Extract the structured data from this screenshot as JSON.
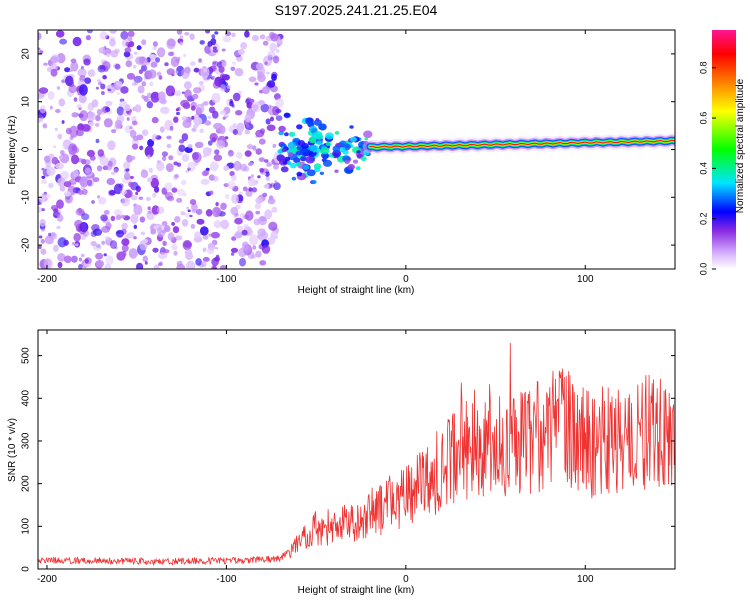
{
  "title": "S197.2025.241.21.25.E04",
  "chart_data": [
    {
      "type": "heatmap",
      "title": "S197.2025.241.21.25.E04",
      "xlabel": "Height of straight line (km)",
      "ylabel": "Frequency (Hz)",
      "xlim": [
        -205,
        150
      ],
      "ylim": [
        -25,
        25
      ],
      "x_ticks": [
        -200,
        -100,
        0,
        100
      ],
      "y_ticks": [
        -20,
        -10,
        0,
        10,
        20
      ],
      "colorbar": {
        "label": "Normalized spectral amplitude",
        "range": [
          0.0,
          0.95
        ],
        "ticks": [
          0.0,
          0.2,
          0.4,
          0.6,
          0.8
        ],
        "tick_labels": [
          "0.0",
          "0.2",
          "0.4",
          "0.6",
          "0.8"
        ],
        "colors": [
          "#ffffff",
          "#d9b8ff",
          "#8a2be2",
          "#0000ff",
          "#00e5ff",
          "#00ff00",
          "#ffff00",
          "#ff8000",
          "#ff0000",
          "#ff1493"
        ]
      },
      "regions": [
        {
          "name": "noise",
          "x_range": [
            -205,
            -70
          ],
          "freq_range": [
            -25,
            25
          ],
          "level_max": 0.18
        },
        {
          "name": "transition",
          "x_range": [
            -70,
            -20
          ],
          "freq_range": [
            -10,
            10
          ],
          "level_max": 0.3
        },
        {
          "name": "signal-line",
          "x_range": [
            -20,
            150
          ],
          "frequency_start": 0.5,
          "frequency_end": 1.8,
          "level_max": 0.9
        }
      ]
    },
    {
      "type": "line",
      "xlabel": "Height of straight line (km)",
      "ylabel": "SNR (10 * v/v)",
      "xlim": [
        -205,
        150
      ],
      "ylim": [
        0,
        560
      ],
      "x_ticks": [
        -200,
        -100,
        0,
        100
      ],
      "y_ticks": [
        0,
        100,
        200,
        300,
        400,
        500
      ],
      "color": "#ee3333",
      "series": [
        {
          "name": "SNR",
          "x": [
            -205,
            -180,
            -150,
            -120,
            -90,
            -70,
            -60,
            -50,
            -40,
            -30,
            -20,
            -10,
            0,
            10,
            20,
            30,
            40,
            50,
            60,
            70,
            80,
            90,
            100,
            110,
            120,
            130,
            140,
            150
          ],
          "values": [
            20,
            19,
            18,
            18,
            20,
            24,
            60,
            95,
            100,
            110,
            130,
            150,
            170,
            200,
            240,
            270,
            300,
            305,
            300,
            320,
            320,
            330,
            300,
            300,
            330,
            300,
            350,
            280
          ]
        }
      ]
    }
  ]
}
